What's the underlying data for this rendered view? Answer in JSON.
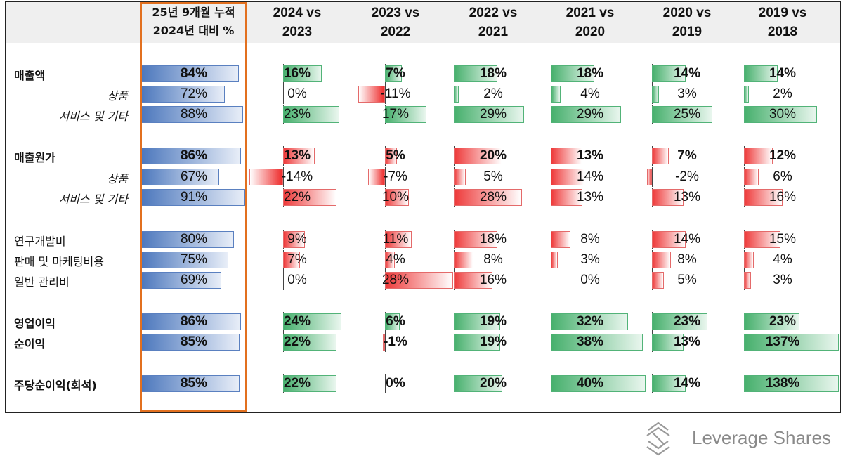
{
  "chart_data": {
    "type": "table",
    "columns": [
      {
        "label": "25년 9개월 누적\n2024년 대비 %",
        "kind": "ytd"
      },
      {
        "label": "2024 vs\n2023",
        "kind": "yoy"
      },
      {
        "label": "2023 vs\n2022",
        "kind": "yoy"
      },
      {
        "label": "2022 vs\n2021",
        "kind": "yoy"
      },
      {
        "label": "2021 vs\n2020",
        "kind": "yoy"
      },
      {
        "label": "2020 vs\n2019",
        "kind": "yoy"
      },
      {
        "label": "2019 vs\n2018",
        "kind": "yoy"
      }
    ],
    "rows": [
      {
        "label": "매출액",
        "style": "bold",
        "group": "revenue",
        "values": [
          84,
          16,
          7,
          18,
          18,
          14,
          14
        ]
      },
      {
        "label": "상품",
        "style": "sub",
        "group": "revenue",
        "values": [
          72,
          0,
          -11,
          2,
          4,
          3,
          2
        ]
      },
      {
        "label": "서비스 및 기타",
        "style": "sub",
        "group": "revenue",
        "values": [
          88,
          23,
          17,
          29,
          29,
          25,
          30
        ]
      },
      {
        "label": "매출원가",
        "style": "bold",
        "group": "cost",
        "values": [
          86,
          13,
          5,
          20,
          13,
          7,
          12
        ]
      },
      {
        "label": "상품",
        "style": "sub",
        "group": "cost",
        "values": [
          67,
          -14,
          -7,
          5,
          14,
          -2,
          6
        ]
      },
      {
        "label": "서비스 및 기타",
        "style": "sub",
        "group": "cost",
        "values": [
          91,
          22,
          10,
          28,
          13,
          13,
          16
        ]
      },
      {
        "label": "연구개발비",
        "style": "plain",
        "group": "cost",
        "values": [
          80,
          9,
          11,
          18,
          8,
          14,
          15
        ]
      },
      {
        "label": "판매 및 마케팅비용",
        "style": "plain",
        "group": "cost",
        "values": [
          75,
          7,
          4,
          8,
          3,
          8,
          4
        ]
      },
      {
        "label": "일반 관리비",
        "style": "plain",
        "group": "cost",
        "values": [
          69,
          0,
          28,
          16,
          0,
          5,
          3
        ]
      },
      {
        "label": "영업이익",
        "style": "bold",
        "group": "profit",
        "values": [
          86,
          24,
          6,
          19,
          32,
          23,
          23
        ]
      },
      {
        "label": "순이익",
        "style": "bold",
        "group": "profit",
        "values": [
          85,
          22,
          -1,
          19,
          38,
          13,
          137
        ]
      },
      {
        "label": "주당순이익(회석)",
        "style": "bold",
        "group": "profit",
        "values": [
          85,
          22,
          0,
          20,
          40,
          14,
          138
        ]
      }
    ],
    "unit": "%",
    "colors": {
      "ytd": "#4d78bd",
      "revenue_profit": "#47b06d",
      "cost": "#ee3a3a",
      "highlight": "#e2701f"
    }
  },
  "brand": {
    "name": "Leverage Shares"
  }
}
